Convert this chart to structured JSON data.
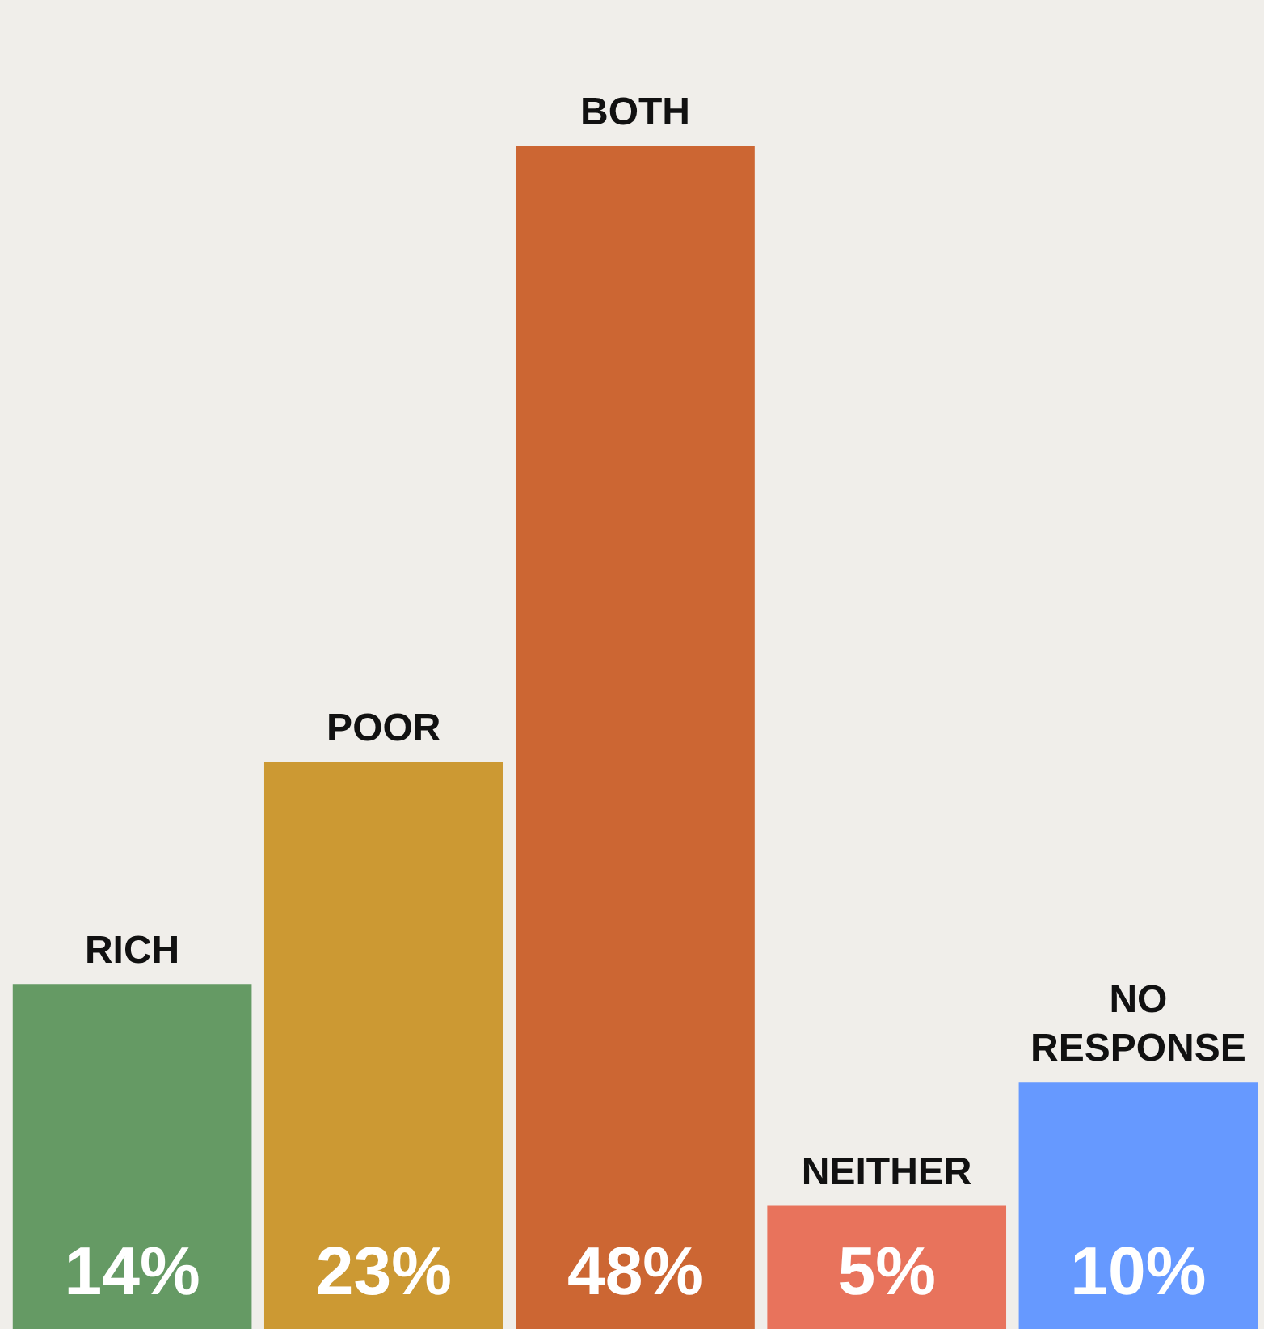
{
  "chart_data": {
    "type": "bar",
    "categories": [
      "RICH",
      "POOR",
      "BOTH",
      "NEITHER",
      "NO RESPONSE"
    ],
    "values": [
      14,
      23,
      48,
      5,
      10
    ],
    "colors": [
      "#659a64",
      "#cc9933",
      "#cc6633",
      "#e8735c",
      "#6699ff"
    ],
    "value_labels": [
      "14%",
      "23%",
      "48%",
      "5%",
      "10%"
    ],
    "legend": false
  }
}
